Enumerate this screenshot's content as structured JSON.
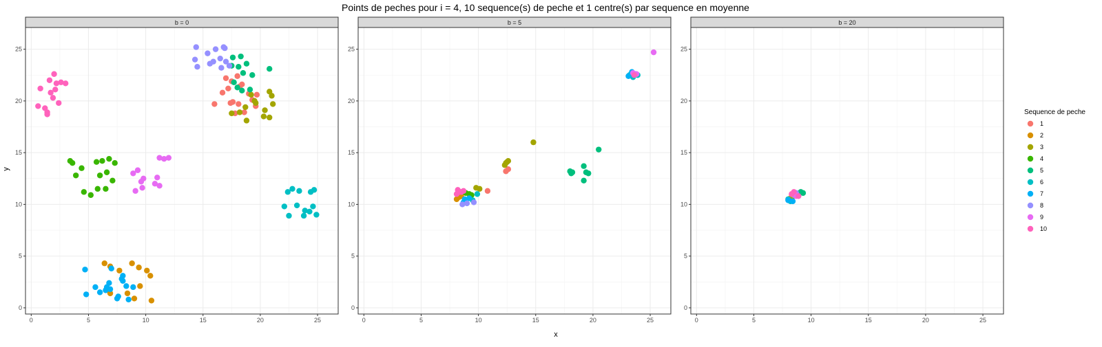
{
  "chart_data": {
    "type": "scatter",
    "title": "Points de peches pour i = 4, 10 sequence(s) de peche et 1 centre(s) par sequence en moyenne",
    "xlabel": "x",
    "ylabel": "y",
    "xlim": [
      -0.5,
      26.8
    ],
    "ylim": [
      -0.6,
      27.1
    ],
    "x_ticks": [
      0,
      5,
      10,
      15,
      20,
      25
    ],
    "y_ticks": [
      0,
      5,
      10,
      15,
      20,
      25
    ],
    "grid": true,
    "legend": {
      "title": "Sequence de peche",
      "placement": "right",
      "labels": [
        "1",
        "2",
        "3",
        "4",
        "5",
        "6",
        "7",
        "8",
        "9",
        "10"
      ]
    },
    "colors": [
      "#F8766D",
      "#D89000",
      "#A3A500",
      "#39B600",
      "#00BF7D",
      "#00BFC4",
      "#00B0F6",
      "#9590FF",
      "#E76BF3",
      "#FF62BC"
    ],
    "panels": [
      {
        "label": "b = 0",
        "series": [
          {
            "name": "1",
            "points": [
              [
                17.0,
                22.2
              ],
              [
                17.5,
                21.9
              ],
              [
                17.2,
                21.2
              ],
              [
                18.0,
                22.4
              ],
              [
                18.4,
                21.6
              ],
              [
                16.7,
                20.8
              ],
              [
                16.0,
                19.7
              ],
              [
                17.6,
                19.9
              ],
              [
                18.1,
                19.7
              ],
              [
                18.6,
                18.9
              ],
              [
                19.3,
                20.1
              ],
              [
                19.6,
                19.5
              ],
              [
                19.0,
                20.7
              ],
              [
                18.2,
                21.4
              ],
              [
                17.8,
                18.8
              ],
              [
                17.4,
                19.8
              ],
              [
                19.7,
                20.6
              ]
            ]
          },
          {
            "name": "2",
            "points": [
              [
                6.4,
                4.3
              ],
              [
                6.9,
                4.0
              ],
              [
                7.7,
                3.6
              ],
              [
                8.8,
                4.3
              ],
              [
                9.4,
                3.9
              ],
              [
                10.1,
                3.6
              ],
              [
                10.4,
                3.1
              ],
              [
                9.5,
                2.1
              ],
              [
                8.4,
                1.4
              ],
              [
                9.0,
                0.9
              ],
              [
                10.5,
                0.7
              ],
              [
                6.7,
                1.7
              ],
              [
                6.9,
                1.4
              ]
            ]
          },
          {
            "name": "3",
            "points": [
              [
                20.8,
                20.9
              ],
              [
                21.0,
                20.5
              ],
              [
                21.1,
                19.7
              ],
              [
                20.4,
                19.1
              ],
              [
                20.3,
                18.5
              ],
              [
                20.8,
                18.4
              ],
              [
                19.5,
                20.0
              ],
              [
                18.8,
                18.1
              ],
              [
                18.7,
                19.4
              ],
              [
                19.6,
                19.8
              ],
              [
                18.2,
                18.9
              ],
              [
                17.5,
                18.8
              ],
              [
                19.2,
                20.6
              ]
            ]
          },
          {
            "name": "4",
            "points": [
              [
                3.4,
                14.2
              ],
              [
                3.6,
                14.0
              ],
              [
                4.4,
                13.5
              ],
              [
                3.9,
                12.8
              ],
              [
                5.7,
                14.1
              ],
              [
                6.2,
                14.2
              ],
              [
                6.8,
                14.4
              ],
              [
                7.3,
                14.0
              ],
              [
                6.6,
                13.1
              ],
              [
                6.0,
                12.8
              ],
              [
                7.1,
                12.3
              ],
              [
                6.5,
                11.5
              ],
              [
                5.8,
                11.5
              ],
              [
                4.6,
                11.2
              ],
              [
                5.2,
                10.9
              ]
            ]
          },
          {
            "name": "5",
            "points": [
              [
                17.6,
                24.2
              ],
              [
                18.3,
                24.3
              ],
              [
                18.8,
                23.6
              ],
              [
                18.1,
                23.3
              ],
              [
                19.3,
                22.5
              ],
              [
                18.5,
                22.7
              ],
              [
                17.7,
                21.8
              ],
              [
                18.0,
                21.3
              ],
              [
                18.4,
                21.0
              ],
              [
                19.1,
                21.1
              ],
              [
                20.8,
                23.1
              ],
              [
                17.5,
                23.4
              ]
            ]
          },
          {
            "name": "6",
            "points": [
              [
                22.4,
                11.2
              ],
              [
                22.8,
                11.5
              ],
              [
                23.4,
                11.3
              ],
              [
                22.1,
                9.8
              ],
              [
                22.5,
                8.9
              ],
              [
                23.2,
                9.9
              ],
              [
                23.9,
                9.4
              ],
              [
                24.4,
                11.2
              ],
              [
                24.7,
                11.4
              ],
              [
                24.6,
                9.8
              ],
              [
                24.3,
                9.3
              ],
              [
                24.9,
                9.0
              ],
              [
                23.8,
                8.9
              ]
            ]
          },
          {
            "name": "7",
            "points": [
              [
                4.7,
                3.7
              ],
              [
                5.6,
                2.0
              ],
              [
                6.0,
                1.5
              ],
              [
                4.8,
                1.3
              ],
              [
                6.8,
                2.4
              ],
              [
                7.0,
                3.8
              ],
              [
                6.6,
                2.0
              ],
              [
                6.5,
                1.7
              ],
              [
                6.9,
                1.8
              ],
              [
                7.6,
                1.1
              ],
              [
                7.5,
                0.9
              ],
              [
                8.0,
                3.1
              ],
              [
                8.0,
                2.6
              ],
              [
                8.3,
                2.1
              ],
              [
                8.5,
                0.8
              ],
              [
                8.9,
                2.0
              ],
              [
                7.9,
                2.8
              ]
            ]
          },
          {
            "name": "8",
            "points": [
              [
                14.4,
                25.2
              ],
              [
                14.3,
                24.0
              ],
              [
                14.5,
                23.3
              ],
              [
                15.4,
                24.6
              ],
              [
                15.6,
                23.6
              ],
              [
                16.1,
                25.0
              ],
              [
                16.5,
                24.1
              ],
              [
                16.9,
                25.1
              ],
              [
                17.0,
                23.8
              ],
              [
                16.6,
                23.2
              ],
              [
                17.3,
                23.4
              ],
              [
                15.9,
                23.8
              ],
              [
                16.8,
                25.2
              ]
            ]
          },
          {
            "name": "9",
            "points": [
              [
                8.9,
                13.0
              ],
              [
                9.3,
                13.3
              ],
              [
                9.8,
                12.5
              ],
              [
                9.6,
                12.2
              ],
              [
                9.1,
                11.3
              ],
              [
                9.7,
                11.6
              ],
              [
                10.8,
                12.0
              ],
              [
                11.2,
                11.8
              ],
              [
                11.0,
                12.6
              ],
              [
                11.2,
                14.5
              ],
              [
                11.6,
                14.4
              ],
              [
                12.0,
                14.5
              ]
            ]
          },
          {
            "name": "10",
            "points": [
              [
                0.6,
                19.5
              ],
              [
                1.2,
                19.3
              ],
              [
                1.4,
                18.9
              ],
              [
                1.4,
                18.7
              ],
              [
                1.9,
                20.3
              ],
              [
                2.1,
                21.1
              ],
              [
                2.4,
                19.8
              ],
              [
                2.2,
                21.7
              ],
              [
                2.6,
                21.8
              ],
              [
                3.0,
                21.7
              ],
              [
                1.6,
                22.0
              ],
              [
                2.0,
                22.6
              ],
              [
                0.8,
                21.2
              ],
              [
                1.7,
                20.8
              ]
            ]
          }
        ]
      },
      {
        "label": "b = 5",
        "series": [
          {
            "name": "1",
            "points": [
              [
                10.8,
                11.3
              ],
              [
                12.4,
                13.2
              ],
              [
                12.6,
                13.4
              ],
              [
                8.3,
                11.2
              ]
            ]
          },
          {
            "name": "2",
            "points": [
              [
                8.1,
                10.5
              ],
              [
                8.5,
                10.8
              ],
              [
                8.3,
                10.7
              ]
            ]
          },
          {
            "name": "3",
            "points": [
              [
                12.3,
                13.8
              ],
              [
                12.5,
                14.1
              ],
              [
                12.6,
                14.2
              ],
              [
                12.4,
                14.0
              ],
              [
                14.8,
                16.0
              ],
              [
                9.8,
                11.6
              ],
              [
                10.1,
                11.5
              ]
            ]
          },
          {
            "name": "4",
            "points": [
              [
                8.9,
                11.1
              ],
              [
                9.4,
                10.9
              ],
              [
                9.2,
                11.0
              ]
            ]
          },
          {
            "name": "5",
            "points": [
              [
                18.0,
                13.2
              ],
              [
                18.2,
                13.1
              ],
              [
                18.1,
                13.0
              ],
              [
                19.2,
                13.7
              ],
              [
                19.4,
                13.1
              ],
              [
                19.6,
                13.0
              ],
              [
                19.2,
                12.3
              ],
              [
                20.5,
                15.3
              ]
            ]
          },
          {
            "name": "6",
            "points": [
              [
                23.2,
                22.5
              ],
              [
                23.5,
                22.3
              ],
              [
                23.9,
                22.5
              ],
              [
                9.9,
                11.0
              ],
              [
                9.5,
                10.4
              ]
            ]
          },
          {
            "name": "7",
            "points": [
              [
                23.4,
                22.8
              ],
              [
                23.1,
                22.4
              ],
              [
                23.7,
                22.6
              ],
              [
                8.7,
                10.2
              ],
              [
                9.2,
                10.6
              ],
              [
                8.8,
                10.5
              ]
            ]
          },
          {
            "name": "8",
            "points": [
              [
                8.6,
                10.0
              ],
              [
                9.0,
                10.1
              ],
              [
                9.6,
                10.2
              ]
            ]
          },
          {
            "name": "9",
            "points": [
              [
                25.3,
                24.7
              ],
              [
                23.5,
                22.7
              ],
              [
                23.8,
                22.6
              ],
              [
                8.5,
                11.2
              ]
            ]
          },
          {
            "name": "10",
            "points": [
              [
                8.2,
                11.4
              ],
              [
                8.4,
                11.2
              ],
              [
                8.7,
                11.3
              ],
              [
                8.1,
                11.0
              ],
              [
                23.6,
                22.5
              ]
            ]
          }
        ]
      },
      {
        "label": "b = 20",
        "series": [
          {
            "name": "1",
            "points": [
              [
                8.5,
                10.8
              ]
            ]
          },
          {
            "name": "2",
            "points": [
              [
                8.2,
                10.6
              ]
            ]
          },
          {
            "name": "3",
            "points": [
              [
                8.3,
                10.5
              ]
            ]
          },
          {
            "name": "4",
            "points": [
              [
                9.0,
                11.1
              ]
            ]
          },
          {
            "name": "5",
            "points": [
              [
                9.3,
                11.1
              ],
              [
                9.1,
                11.2
              ]
            ]
          },
          {
            "name": "6",
            "points": [
              [
                8.0,
                10.5
              ],
              [
                8.2,
                10.3
              ]
            ]
          },
          {
            "name": "7",
            "points": [
              [
                8.4,
                10.3
              ],
              [
                8.0,
                10.4
              ]
            ]
          },
          {
            "name": "8",
            "points": [
              [
                8.7,
                11.1
              ],
              [
                8.5,
                10.9
              ]
            ]
          },
          {
            "name": "9",
            "points": [
              [
                8.7,
                10.8
              ],
              [
                8.6,
                11.0
              ]
            ]
          },
          {
            "name": "10",
            "points": [
              [
                8.3,
                11.0
              ],
              [
                8.5,
                11.2
              ],
              [
                8.9,
                10.8
              ]
            ]
          }
        ]
      }
    ]
  }
}
